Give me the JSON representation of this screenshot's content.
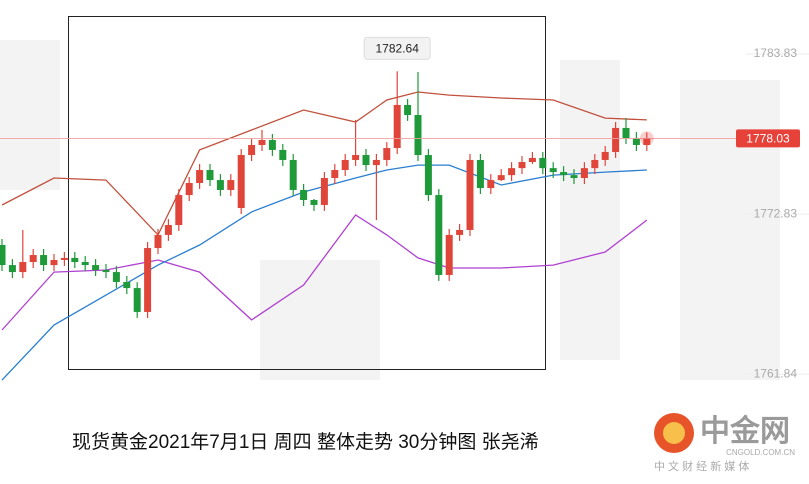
{
  "chart_data": {
    "type": "candlestick",
    "title": "现货黄金2021年7月1日 周四 整体走势 30分钟图 张尧浠",
    "logo": {
      "name": "中金网",
      "domain": "CNGOLD.COM.CN",
      "slogan": "中 文 财 经 新 媒 体"
    },
    "ylim": [
      1754.29,
      1787.54
    ],
    "yticks": [
      1783.83,
      1772.83,
      1761.84
    ],
    "up_color": "#e0453a",
    "down_color": "#1f9a3a",
    "candles": [
      [
        1770.71,
        1771.12,
        1768.92,
        1769.33
      ],
      [
        1769.33,
        1769.74,
        1768.44,
        1768.85
      ],
      [
        1768.85,
        1771.74,
        1768.44,
        1769.54
      ],
      [
        1769.54,
        1770.43,
        1769.13,
        1770.02
      ],
      [
        1770.02,
        1770.43,
        1768.92,
        1769.33
      ],
      [
        1769.33,
        1770.09,
        1768.92,
        1769.68
      ],
      [
        1769.68,
        1770.23,
        1769.27,
        1769.82
      ],
      [
        1769.82,
        1770.23,
        1769.13,
        1769.54
      ],
      [
        1769.54,
        1769.95,
        1768.92,
        1769.33
      ],
      [
        1769.33,
        1769.74,
        1768.58,
        1768.99
      ],
      [
        1768.99,
        1769.4,
        1768.44,
        1768.85
      ],
      [
        1768.85,
        1769.26,
        1767.76,
        1768.17
      ],
      [
        1768.17,
        1768.58,
        1767.34,
        1767.75
      ],
      [
        1767.75,
        1768.16,
        1765.7,
        1766.11
      ],
      [
        1766.11,
        1770.91,
        1765.69,
        1770.5
      ],
      [
        1770.5,
        1771.81,
        1770.09,
        1771.4
      ],
      [
        1771.4,
        1772.49,
        1770.99,
        1772.08
      ],
      [
        1772.08,
        1774.55,
        1771.67,
        1774.14
      ],
      [
        1774.14,
        1775.38,
        1773.73,
        1774.97
      ],
      [
        1774.97,
        1776.27,
        1774.56,
        1775.86
      ],
      [
        1775.86,
        1776.27,
        1774.76,
        1775.17
      ],
      [
        1775.17,
        1775.58,
        1774.08,
        1774.49
      ],
      [
        1774.49,
        1775.58,
        1774.08,
        1775.17
      ],
      [
        1773.25,
        1777.3,
        1772.84,
        1776.89
      ],
      [
        1776.89,
        1777.99,
        1776.48,
        1777.58
      ],
      [
        1777.58,
        1778.61,
        1777.17,
        1777.92
      ],
      [
        1777.92,
        1778.33,
        1776.83,
        1777.24
      ],
      [
        1777.24,
        1777.65,
        1776.14,
        1776.55
      ],
      [
        1776.55,
        1776.96,
        1774.08,
        1774.49
      ],
      [
        1774.49,
        1774.9,
        1773.39,
        1773.8
      ],
      [
        1773.8,
        1773.87,
        1773.05,
        1773.46
      ],
      [
        1773.46,
        1775.72,
        1773.05,
        1775.31
      ],
      [
        1775.31,
        1776.27,
        1774.9,
        1775.86
      ],
      [
        1775.86,
        1776.96,
        1775.45,
        1776.55
      ],
      [
        1776.55,
        1779.3,
        1776.14,
        1776.89
      ],
      [
        1776.89,
        1777.3,
        1775.79,
        1776.2
      ],
      [
        1776.2,
        1776.96,
        1772.42,
        1776.55
      ],
      [
        1776.55,
        1777.78,
        1776.14,
        1777.37
      ],
      [
        1777.37,
        1782.64,
        1776.96,
        1780.33
      ],
      [
        1780.33,
        1780.74,
        1779.23,
        1779.64
      ],
      [
        1779.64,
        1782.59,
        1776.48,
        1776.89
      ],
      [
        1776.89,
        1777.3,
        1773.73,
        1774.14
      ],
      [
        1774.14,
        1774.55,
        1768.24,
        1768.65
      ],
      [
        1768.65,
        1771.81,
        1768.24,
        1771.4
      ],
      [
        1771.4,
        1772.15,
        1770.99,
        1771.74
      ],
      [
        1771.74,
        1776.96,
        1771.33,
        1776.55
      ],
      [
        1776.55,
        1776.96,
        1774.21,
        1774.62
      ],
      [
        1774.62,
        1775.58,
        1774.21,
        1775.17
      ],
      [
        1775.17,
        1775.92,
        1775.1,
        1775.51
      ],
      [
        1775.51,
        1776.4,
        1775.1,
        1775.99
      ],
      [
        1775.99,
        1776.82,
        1775.58,
        1776.41
      ],
      [
        1776.41,
        1777.1,
        1776.28,
        1776.69
      ],
      [
        1776.69,
        1777.1,
        1775.58,
        1775.99
      ],
      [
        1775.99,
        1776.4,
        1775.31,
        1775.72
      ],
      [
        1775.72,
        1776.13,
        1775.1,
        1775.51
      ],
      [
        1775.51,
        1775.92,
        1774.9,
        1775.31
      ],
      [
        1775.31,
        1776.4,
        1774.9,
        1775.99
      ],
      [
        1775.99,
        1776.96,
        1775.58,
        1776.55
      ],
      [
        1776.55,
        1777.51,
        1776.14,
        1777.1
      ],
      [
        1777.1,
        1779.16,
        1776.69,
        1778.75
      ],
      [
        1778.75,
        1779.43,
        1777.65,
        1778.06
      ],
      [
        1778.06,
        1778.47,
        1777.17,
        1777.58
      ],
      [
        1777.58,
        1778.44,
        1777.17,
        1778.03
      ]
    ],
    "overlay_x": [
      0,
      5,
      10,
      15,
      19,
      24,
      29,
      34,
      37,
      40,
      43,
      48,
      53,
      58,
      62
    ],
    "overlays": [
      {
        "color": "#c0503c",
        "values": [
          1773.46,
          1775.31,
          1775.17,
          1771.4,
          1777.24,
          1778.61,
          1779.98,
          1779.16,
          1780.67,
          1781.22,
          1781.01,
          1780.81,
          1780.67,
          1779.43,
          1779.3
        ]
      },
      {
        "color": "#b040d0",
        "values": [
          1764.87,
          1768.85,
          1768.99,
          1769.68,
          1768.85,
          1765.56,
          1767.96,
          1772.77,
          1771.4,
          1769.82,
          1769.13,
          1769.13,
          1769.33,
          1770.23,
          1772.42
        ]
      },
      {
        "color": "#2a7fd0",
        "values": [
          1761.43,
          1765.21,
          1767.27,
          1769.33,
          1770.71,
          1772.98,
          1774.35,
          1775.31,
          1775.86,
          1776.2,
          1776.2,
          1774.83,
          1775.51,
          1775.72,
          1775.86
        ]
      }
    ]
  }
}
